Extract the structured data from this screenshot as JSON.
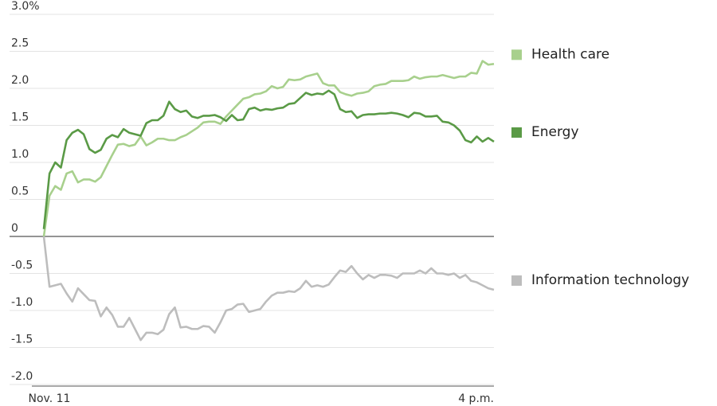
{
  "chart_data": {
    "type": "line",
    "categories": [
      "Nov. 11",
      null,
      null,
      null,
      null,
      null,
      null,
      null,
      null,
      null,
      null,
      null,
      null,
      null,
      null,
      null,
      null,
      null,
      null,
      null,
      null,
      null,
      null,
      null,
      null,
      null,
      null,
      null,
      null,
      null,
      null,
      null,
      null,
      null,
      null,
      null,
      null,
      null,
      null,
      null,
      null,
      null,
      null,
      null,
      null,
      null,
      null,
      null,
      null,
      null,
      null,
      null,
      null,
      null,
      null,
      null,
      null,
      null,
      null,
      null,
      null,
      null,
      null,
      null,
      null,
      null,
      null,
      null,
      null,
      null,
      null,
      null,
      null,
      null,
      null,
      null,
      null,
      null,
      null,
      "4 p.m."
    ],
    "series": [
      {
        "name": "Health care",
        "color": "#a8d08d",
        "values": [
          0,
          0.55,
          0.68,
          0.63,
          0.85,
          0.88,
          0.73,
          0.77,
          0.77,
          0.74,
          0.8,
          0.95,
          1.1,
          1.24,
          1.25,
          1.22,
          1.24,
          1.35,
          1.23,
          1.27,
          1.32,
          1.32,
          1.3,
          1.3,
          1.34,
          1.37,
          1.42,
          1.47,
          1.54,
          1.55,
          1.55,
          1.52,
          1.62,
          1.7,
          1.78,
          1.86,
          1.88,
          1.92,
          1.93,
          1.96,
          2.03,
          2.0,
          2.02,
          2.12,
          2.11,
          2.12,
          2.16,
          2.18,
          2.2,
          2.07,
          2.04,
          2.04,
          1.95,
          1.92,
          1.9,
          1.93,
          1.94,
          1.96,
          2.03,
          2.05,
          2.06,
          2.1,
          2.1,
          2.1,
          2.11,
          2.16,
          2.13,
          2.15,
          2.16,
          2.16,
          2.18,
          2.16,
          2.14,
          2.16,
          2.16,
          2.21,
          2.2,
          2.37,
          2.32,
          2.33
        ]
      },
      {
        "name": "Energy",
        "color": "#5a9a46",
        "values": [
          0.1,
          0.85,
          1.0,
          0.93,
          1.3,
          1.4,
          1.44,
          1.38,
          1.18,
          1.13,
          1.17,
          1.32,
          1.37,
          1.34,
          1.45,
          1.4,
          1.38,
          1.36,
          1.53,
          1.57,
          1.57,
          1.63,
          1.82,
          1.72,
          1.68,
          1.7,
          1.62,
          1.6,
          1.63,
          1.63,
          1.64,
          1.61,
          1.56,
          1.64,
          1.57,
          1.58,
          1.72,
          1.74,
          1.7,
          1.72,
          1.71,
          1.73,
          1.74,
          1.79,
          1.8,
          1.87,
          1.94,
          1.91,
          1.93,
          1.92,
          1.97,
          1.92,
          1.72,
          1.68,
          1.69,
          1.6,
          1.64,
          1.65,
          1.65,
          1.66,
          1.66,
          1.67,
          1.66,
          1.64,
          1.61,
          1.67,
          1.66,
          1.62,
          1.62,
          1.63,
          1.55,
          1.54,
          1.5,
          1.43,
          1.3,
          1.27,
          1.35,
          1.28,
          1.33,
          1.28
        ]
      },
      {
        "name": "Information technology",
        "color": "#bdbdbd",
        "values": [
          0,
          -0.68,
          -0.66,
          -0.64,
          -0.77,
          -0.88,
          -0.7,
          -0.78,
          -0.86,
          -0.87,
          -1.08,
          -0.96,
          -1.06,
          -1.22,
          -1.22,
          -1.1,
          -1.25,
          -1.4,
          -1.3,
          -1.3,
          -1.32,
          -1.26,
          -1.05,
          -0.96,
          -1.23,
          -1.22,
          -1.25,
          -1.25,
          -1.21,
          -1.22,
          -1.3,
          -1.16,
          -1.0,
          -0.98,
          -0.92,
          -0.91,
          -1.02,
          -1.0,
          -0.98,
          -0.88,
          -0.8,
          -0.76,
          -0.76,
          -0.74,
          -0.75,
          -0.7,
          -0.6,
          -0.68,
          -0.66,
          -0.68,
          -0.65,
          -0.55,
          -0.46,
          -0.48,
          -0.4,
          -0.5,
          -0.58,
          -0.52,
          -0.56,
          -0.52,
          -0.52,
          -0.53,
          -0.56,
          -0.5,
          -0.5,
          -0.5,
          -0.46,
          -0.5,
          -0.43,
          -0.5,
          -0.5,
          -0.52,
          -0.5,
          -0.56,
          -0.52,
          -0.6,
          -0.62,
          -0.66,
          -0.7,
          -0.72
        ]
      }
    ],
    "ylim": [
      -2,
      3
    ],
    "yticks": [
      {
        "value": -2,
        "label": "-2.0"
      },
      -1.5,
      {
        "value": -1,
        "label": "-1.0"
      },
      -0.5,
      0,
      0.5,
      {
        "value": 1,
        "label": "1.0"
      },
      1.5,
      {
        "value": 2,
        "label": "2.0"
      },
      2.5,
      {
        "value": 3,
        "label": "3.0%"
      }
    ],
    "grid": true,
    "legend": "right"
  }
}
